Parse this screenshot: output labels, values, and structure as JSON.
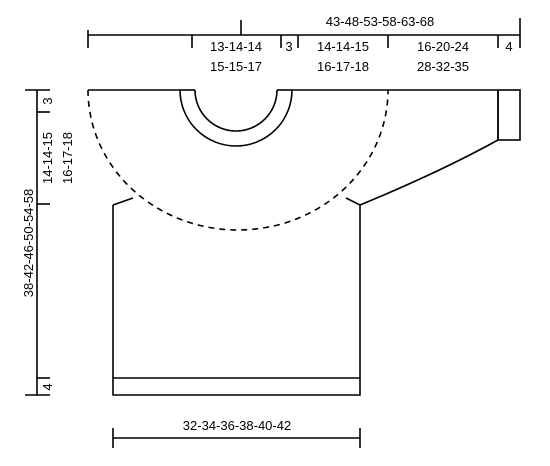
{
  "diagram": {
    "line_color": "#000000",
    "background": "#ffffff",
    "top_overall": "43-48-53-58-63-68",
    "top_neck_half_r1": "13-14-14",
    "top_neck_half_r2": "15-15-17",
    "top_small_3": "3",
    "top_yoke_r1": "14-14-15",
    "top_yoke_r2": "16-17-18",
    "top_sleeve_r1": "16-20-24",
    "top_sleeve_r2": "28-32-35",
    "top_cuff_4": "4",
    "left_overall": "38-42-46-50-54-58",
    "left_yoke_r1": "14-14-15",
    "left_yoke_r2": "16-17-18",
    "left_small_3": "3",
    "left_bottom_4": "4",
    "bottom_width": "32-34-36-38-40-42"
  }
}
